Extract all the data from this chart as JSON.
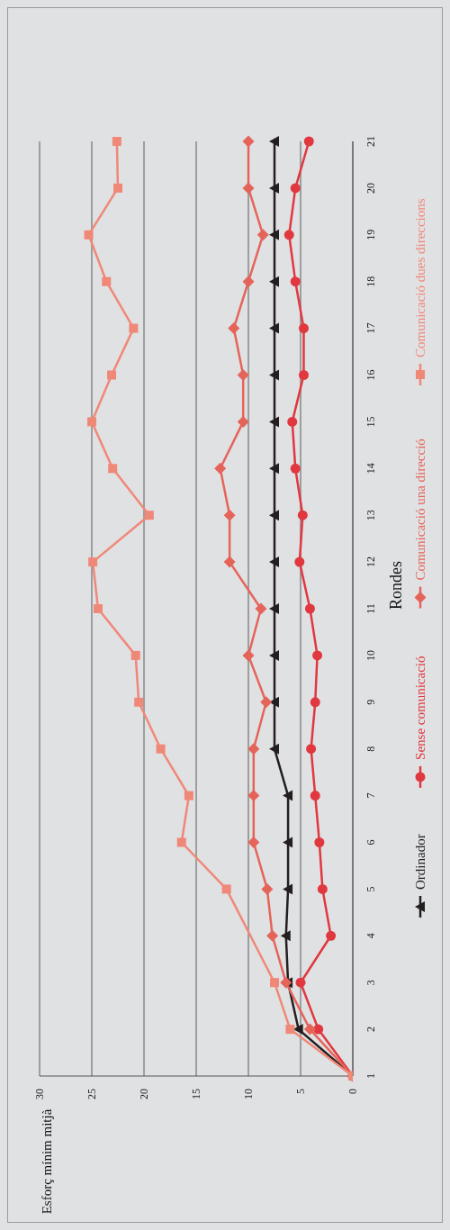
{
  "chart_data": {
    "type": "line",
    "orientation": "horizontal",
    "ylabel": "Rondes",
    "annotations": [
      "Esforç mínim mitjà"
    ],
    "categories": [
      "21",
      "20",
      "19",
      "18",
      "17",
      "16",
      "15",
      "14",
      "13",
      "12",
      "11",
      "10",
      "9",
      "8",
      "7",
      "6",
      "5",
      "4",
      "3",
      "2",
      "1"
    ],
    "series": [
      {
        "name": "Ordinador",
        "color": "#231f20",
        "marker": "triangle",
        "values": [
          7.5,
          7.5,
          7.5,
          7.5,
          7.5,
          7.5,
          7.5,
          7.5,
          7.5,
          7.5,
          7.5,
          7.5,
          7.5,
          7.5,
          6.2,
          6.2,
          6.2,
          6.4,
          6.2,
          5.2,
          0
        ]
      },
      {
        "name": "Sense comunicació",
        "color": "#e0383e",
        "marker": "circle",
        "values": [
          4.2,
          5.5,
          6.1,
          5.5,
          4.7,
          4.7,
          5.8,
          5.5,
          4.8,
          5.1,
          4.1,
          3.4,
          3.6,
          4.0,
          3.6,
          3.2,
          2.9,
          2.1,
          5.0,
          3.3,
          0
        ]
      },
      {
        "name": "Comunicació una direcció",
        "color": "#e5645a",
        "marker": "diamond",
        "values": [
          10.0,
          10.0,
          8.6,
          10.0,
          11.4,
          10.5,
          10.5,
          12.7,
          11.8,
          11.8,
          8.8,
          10.0,
          8.3,
          9.5,
          9.5,
          9.5,
          8.2,
          7.7,
          6.4,
          4.1,
          0
        ]
      },
      {
        "name": "Comunicació dues direccions",
        "color": "#f08878",
        "marker": "square",
        "values": [
          22.6,
          22.5,
          25.3,
          23.6,
          21.0,
          23.1,
          25.0,
          23.0,
          19.5,
          24.9,
          24.4,
          20.8,
          20.5,
          18.4,
          15.7,
          16.4,
          12.1,
          null,
          7.5,
          6.0,
          0
        ]
      }
    ],
    "xlim": [
      30,
      0
    ],
    "xticks": [
      0,
      5,
      10,
      15,
      20,
      25,
      30
    ],
    "grid": "x",
    "legend": "right",
    "line_style": "solid"
  }
}
